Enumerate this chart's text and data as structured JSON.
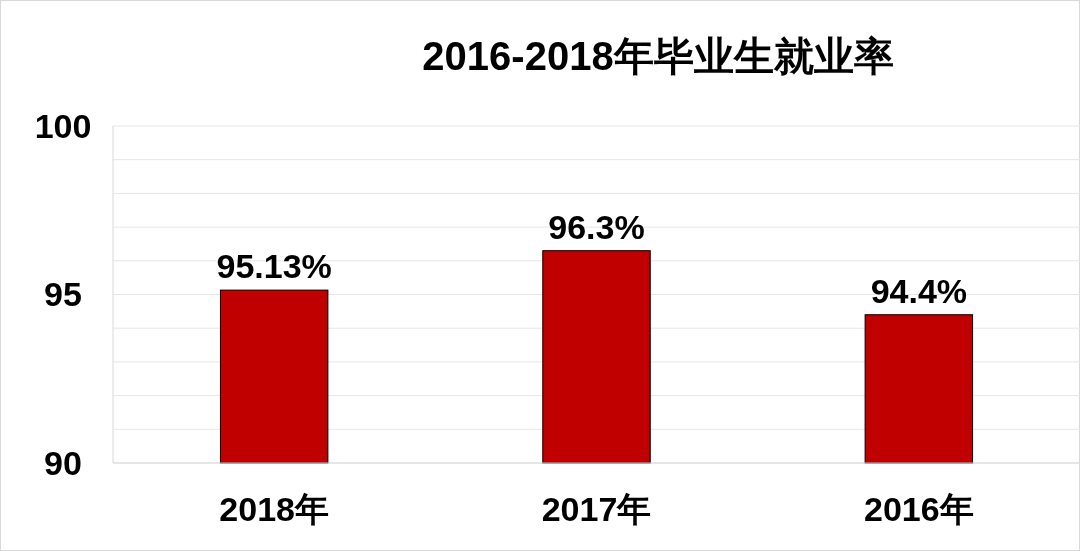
{
  "chart_data": {
    "type": "bar",
    "title": "2016-2018年毕业生就业率",
    "categories": [
      "2018年",
      "2017年",
      "2016年"
    ],
    "values": [
      95.13,
      96.3,
      94.4
    ],
    "value_labels": [
      "95.13%",
      "96.3%",
      "94.4%"
    ],
    "color": "#c00000",
    "ylim": [
      90,
      100
    ],
    "yticks": [
      90,
      {
        "value": 91,
        "label": null
      },
      {
        "value": 92,
        "label": null
      },
      {
        "value": 93,
        "label": null
      },
      {
        "value": 94,
        "label": null
      },
      95,
      {
        "value": 96,
        "label": null
      },
      {
        "value": 97,
        "label": null
      },
      {
        "value": 98,
        "label": null
      },
      {
        "value": 99,
        "label": null
      },
      100
    ],
    "grid": "y"
  }
}
